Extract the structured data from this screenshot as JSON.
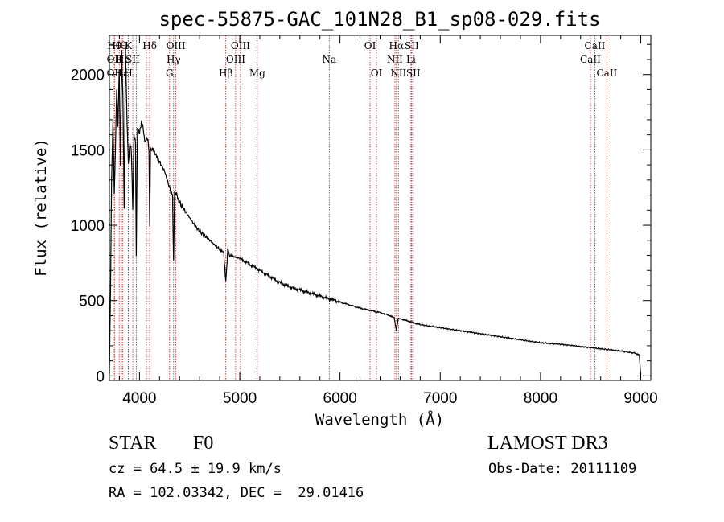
{
  "chart_data": {
    "type": "line",
    "title": "spec-55875-GAC_101N28_B1_sp08-029.fits",
    "xlabel": "Wavelength (Å)",
    "ylabel": "Flux (relative)",
    "xlim": [
      3700,
      9100
    ],
    "ylim": [
      -30,
      2260
    ],
    "xticks": [
      4000,
      5000,
      6000,
      7000,
      8000,
      9000
    ],
    "yticks": [
      0,
      500,
      1000,
      1500,
      2000
    ],
    "spectrum": {
      "x": [
        3700,
        3712,
        3722,
        3735,
        3748,
        3760,
        3772,
        3785,
        3798,
        3810,
        3822,
        3835,
        3848,
        3860,
        3875,
        3889,
        3905,
        3920,
        3933,
        3945,
        3960,
        3968,
        3980,
        4000,
        4020,
        4040,
        4060,
        4080,
        4095,
        4102,
        4110,
        4130,
        4160,
        4200,
        4250,
        4300,
        4330,
        4340,
        4350,
        4370,
        4400,
        4450,
        4500,
        4550,
        4600,
        4650,
        4700,
        4750,
        4800,
        4840,
        4861,
        4880,
        4900,
        4950,
        5000,
        5100,
        5200,
        5300,
        5400,
        5500,
        5600,
        5700,
        5800,
        5900,
        6000,
        6100,
        6200,
        6300,
        6400,
        6500,
        6540,
        6563,
        6580,
        6600,
        6700,
        6800,
        7000,
        7200,
        7400,
        7600,
        7800,
        8000,
        8200,
        8400,
        8600,
        8800,
        8950,
        8985,
        9000
      ],
      "y": [
        0,
        600,
        1300,
        1700,
        1200,
        1500,
        1900,
        1650,
        2050,
        1400,
        2150,
        1850,
        1100,
        2200,
        1700,
        1400,
        1550,
        1480,
        1100,
        1600,
        1550,
        800,
        1650,
        1600,
        1700,
        1620,
        1550,
        1580,
        1500,
        1000,
        1520,
        1500,
        1480,
        1420,
        1360,
        1250,
        1200,
        750,
        1230,
        1200,
        1150,
        1100,
        1050,
        1000,
        960,
        930,
        900,
        870,
        840,
        820,
        620,
        840,
        800,
        790,
        780,
        740,
        700,
        660,
        620,
        590,
        570,
        550,
        530,
        510,
        490,
        470,
        450,
        435,
        420,
        400,
        390,
        300,
        380,
        380,
        360,
        340,
        320,
        300,
        280,
        260,
        240,
        220,
        210,
        195,
        180,
        165,
        150,
        140,
        0
      ]
    },
    "lines": [
      {
        "wl": 3750,
        "row": 0,
        "label": "Hθ"
      },
      {
        "wl": 3750,
        "row": 1,
        "label": "OII"
      },
      {
        "wl": 3750,
        "row": 2,
        "label": "OII"
      },
      {
        "wl": 3798,
        "row": 0,
        "label": "Hθ"
      },
      {
        "wl": 3835,
        "row": 1,
        "label": "He"
      },
      {
        "wl": 3820,
        "row": 2,
        "label": "Hε"
      },
      {
        "wl": 3889,
        "row": 0,
        "label": "K"
      },
      {
        "wl": 3889,
        "row": 2,
        "label": "H"
      },
      {
        "wl": 3933,
        "row": 1,
        "label": "SII"
      },
      {
        "wl": 3968,
        "row": 0,
        "label": ""
      },
      {
        "wl": 4102,
        "row": 0,
        "label": "Hδ"
      },
      {
        "wl": 4069,
        "row": 1,
        "label": ""
      },
      {
        "wl": 4300,
        "row": 2,
        "label": "G"
      },
      {
        "wl": 4340,
        "row": 1,
        "label": "Hγ"
      },
      {
        "wl": 4363,
        "row": 0,
        "label": "OIII"
      },
      {
        "wl": 4861,
        "row": 2,
        "label": "Hβ"
      },
      {
        "wl": 4959,
        "row": 1,
        "label": "OIII"
      },
      {
        "wl": 5007,
        "row": 0,
        "label": "OIII"
      },
      {
        "wl": 5175,
        "row": 2,
        "label": "Mg"
      },
      {
        "wl": 5893,
        "row": 1,
        "label": "Na"
      },
      {
        "wl": 6300,
        "row": 0,
        "label": "OI"
      },
      {
        "wl": 6364,
        "row": 2,
        "label": "OI"
      },
      {
        "wl": 6548,
        "row": 1,
        "label": "NII"
      },
      {
        "wl": 6563,
        "row": 0,
        "label": "Hα"
      },
      {
        "wl": 6583,
        "row": 2,
        "label": "NII"
      },
      {
        "wl": 6708,
        "row": 1,
        "label": "Li"
      },
      {
        "wl": 6716,
        "row": 0,
        "label": "SII"
      },
      {
        "wl": 6731,
        "row": 2,
        "label": "SII"
      },
      {
        "wl": 8498,
        "row": 1,
        "label": "CaII"
      },
      {
        "wl": 8542,
        "row": 0,
        "label": "CaII"
      },
      {
        "wl": 8662,
        "row": 2,
        "label": "CaII"
      }
    ]
  },
  "info": {
    "class": "STAR",
    "subclass": "F0",
    "survey": "LAMOST DR3",
    "cz": "cz = 64.5 ± 19.9 km/s",
    "obs_date": "Obs-Date: 20111109",
    "coords": "RA = 102.03342, DEC =  29.01416"
  }
}
